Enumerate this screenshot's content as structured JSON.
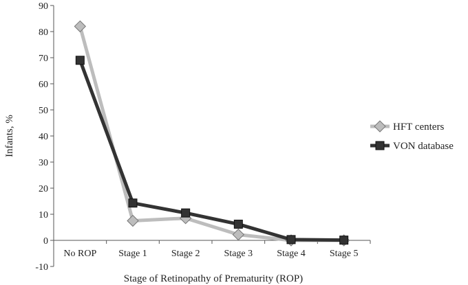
{
  "chart_data": {
    "type": "line",
    "categories": [
      "No ROP",
      "Stage 1",
      "Stage 2",
      "Stage 3",
      "Stage 4",
      "Stage 5"
    ],
    "series": [
      {
        "name": "HFT centers",
        "values": [
          82,
          7.5,
          8.5,
          2.2,
          0,
          0
        ],
        "color": "#bdbdbd",
        "marker": "diamond"
      },
      {
        "name": "VON database",
        "values": [
          69,
          14.3,
          10.5,
          6.2,
          0.3,
          0.1
        ],
        "color": "#333333",
        "marker": "square"
      }
    ],
    "title": "",
    "xlabel": "Stage of Retinopathy of Prematurity (ROP)",
    "ylabel": "Infants, %",
    "ylim": [
      -10,
      90
    ],
    "yticks": [
      "-10",
      "0",
      "10",
      "20",
      "30",
      "40",
      "50",
      "60",
      "70",
      "80",
      "90"
    ],
    "grid": false,
    "legend": "right"
  }
}
